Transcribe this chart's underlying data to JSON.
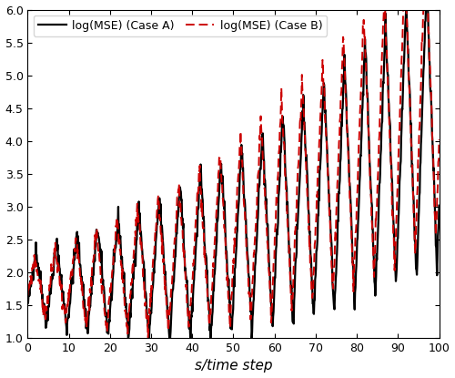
{
  "title": "",
  "xlabel": "s/time step",
  "ylabel": "",
  "xlim": [
    0,
    100
  ],
  "ylim": [
    1,
    6
  ],
  "xticks": [
    0,
    10,
    20,
    30,
    40,
    50,
    60,
    70,
    80,
    90,
    100
  ],
  "yticks": [
    1,
    1.5,
    2,
    2.5,
    3,
    3.5,
    4,
    4.5,
    5,
    5.5,
    6
  ],
  "legend_caseA": "log(MSE) (Case A)",
  "legend_caseB": "log(MSE) (Case B)",
  "color_A": "#000000",
  "color_B": "#cc0000",
  "linewidth_A": 1.6,
  "linewidth_B": 1.4,
  "figsize": [
    5.0,
    4.15
  ],
  "dpi": 100
}
